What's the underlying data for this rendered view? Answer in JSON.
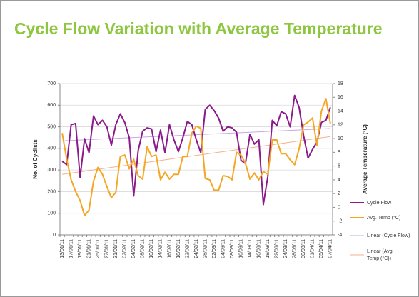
{
  "chart_data": {
    "type": "line",
    "title": "Cycle Flow Variation with Average Temperature",
    "y_label": "No. of Cyclists",
    "y2_label": "Average Temperature (°C)",
    "categories": [
      "13/01/11",
      null,
      "17/01/11",
      null,
      "19/01/11",
      null,
      "21/01/11",
      null,
      "25/01/11",
      null,
      "27/01/11",
      null,
      "31/01/11",
      null,
      "02/02/11",
      null,
      "04/02/11",
      null,
      "08/02/11",
      null,
      "10/02/11",
      null,
      "14/02/11",
      null,
      "16/02/11",
      null,
      "18/02/11",
      null,
      "22/02/11",
      null,
      "24/02/11",
      null,
      "28/02/11",
      null,
      "02/03/11",
      null,
      "04/03/11",
      null,
      "08/03/11",
      null,
      "10/03/11",
      null,
      "14/03/11",
      null,
      "16/03/11",
      null,
      "18/03/11",
      null,
      "22/03/11",
      null,
      "24/03/11",
      null,
      "28/03/11",
      null,
      "30/03/11",
      null,
      "01/04/11",
      null,
      "05/04/11",
      null,
      "07/04/11"
    ],
    "series": [
      {
        "name": "Cycle Flow",
        "color": "#8b1a8b",
        "axis": "y",
        "values": [
          340,
          325,
          510,
          515,
          265,
          445,
          380,
          550,
          510,
          530,
          500,
          415,
          510,
          560,
          520,
          450,
          180,
          390,
          480,
          495,
          490,
          385,
          485,
          380,
          510,
          440,
          385,
          450,
          525,
          510,
          440,
          380,
          580,
          600,
          575,
          540,
          480,
          500,
          495,
          475,
          345,
          330,
          465,
          420,
          440,
          140,
          270,
          530,
          505,
          570,
          560,
          500,
          645,
          590,
          460,
          355,
          395,
          430,
          520,
          530,
          590
        ]
      },
      {
        "name": "Avg. Temp (°C)",
        "color": "#f5a623",
        "axis": "y2",
        "values": [
          10.8,
          7,
          4,
          2.3,
          1,
          -1.2,
          -0.4,
          3.8,
          5.8,
          4.8,
          3,
          1.4,
          2.2,
          7.4,
          7.6,
          5.6,
          7,
          4.6,
          4.1,
          8.8,
          7.4,
          7.6,
          4,
          5.1,
          4.1,
          4.8,
          4.8,
          7.4,
          7.4,
          10.8,
          11.8,
          11.5,
          4.2,
          4,
          2.5,
          2.5,
          4.6,
          4.5,
          4,
          8,
          7.6,
          6.4,
          4.1,
          5,
          4,
          5.2,
          4.8,
          9.8,
          9.8,
          7.8,
          7.8,
          6.9,
          6.2,
          8.5,
          12,
          12.4,
          13,
          9,
          14,
          15.8,
          12.2
        ]
      }
    ],
    "trendlines": [
      {
        "name": "Linear (Cycle Flow)",
        "color": "#c9a6e6",
        "axis": "y",
        "values": [
          435,
          492
        ]
      },
      {
        "name": "Linear (Avg. Temp (°C))",
        "color": "#f5b08a",
        "axis": "y2",
        "values": [
          4.8,
          10.3
        ]
      }
    ],
    "ylim": [
      0,
      700
    ],
    "yticks": [
      0,
      100,
      200,
      300,
      400,
      500,
      600,
      700
    ],
    "y2lim": [
      -4,
      18
    ],
    "y2ticks": [
      -4,
      -2,
      0,
      2,
      4,
      6,
      8,
      10,
      12,
      14,
      16,
      18
    ],
    "grid": true,
    "legend": "right"
  }
}
